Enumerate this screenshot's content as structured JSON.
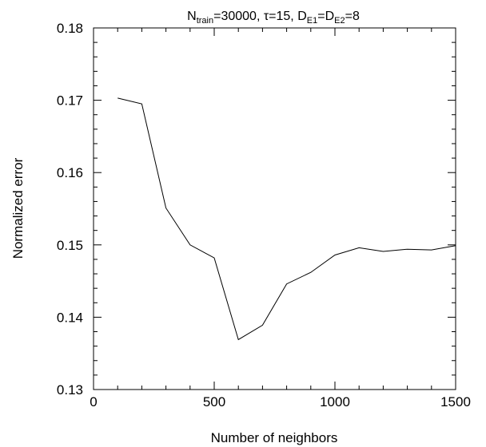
{
  "chart_data": {
    "type": "line",
    "title": {
      "parts": [
        {
          "text": "N",
          "role": "base"
        },
        {
          "text": "train",
          "role": "sub"
        },
        {
          "text": "=30000, τ=15, D",
          "role": "base"
        },
        {
          "text": "E1",
          "role": "sub"
        },
        {
          "text": "=D",
          "role": "base"
        },
        {
          "text": "E2",
          "role": "sub"
        },
        {
          "text": "=8",
          "role": "base"
        }
      ]
    },
    "xlabel": "Number of neighbors",
    "ylabel": "Normalized error",
    "xlim": [
      0,
      1500
    ],
    "ylim": [
      0.13,
      0.18
    ],
    "xticks": [
      0,
      500,
      1000,
      1500
    ],
    "xtick_labels": [
      "0",
      "500",
      "1000",
      "1500"
    ],
    "yticks": [
      0.13,
      0.14,
      0.15,
      0.16,
      0.17,
      0.18
    ],
    "ytick_labels": [
      "0.13",
      "0.14",
      "0.15",
      "0.16",
      "0.17",
      "0.18"
    ],
    "grid": false,
    "series": [
      {
        "x": [
          100,
          200,
          300,
          400,
          500,
          600,
          700,
          800,
          900,
          1000,
          1100,
          1200,
          1300,
          1400,
          1500
        ],
        "y": [
          0.1703,
          0.1695,
          0.1551,
          0.15,
          0.1482,
          0.1369,
          0.1389,
          0.1446,
          0.1462,
          0.1486,
          0.1496,
          0.1491,
          0.1494,
          0.1493,
          0.1499
        ]
      }
    ]
  }
}
